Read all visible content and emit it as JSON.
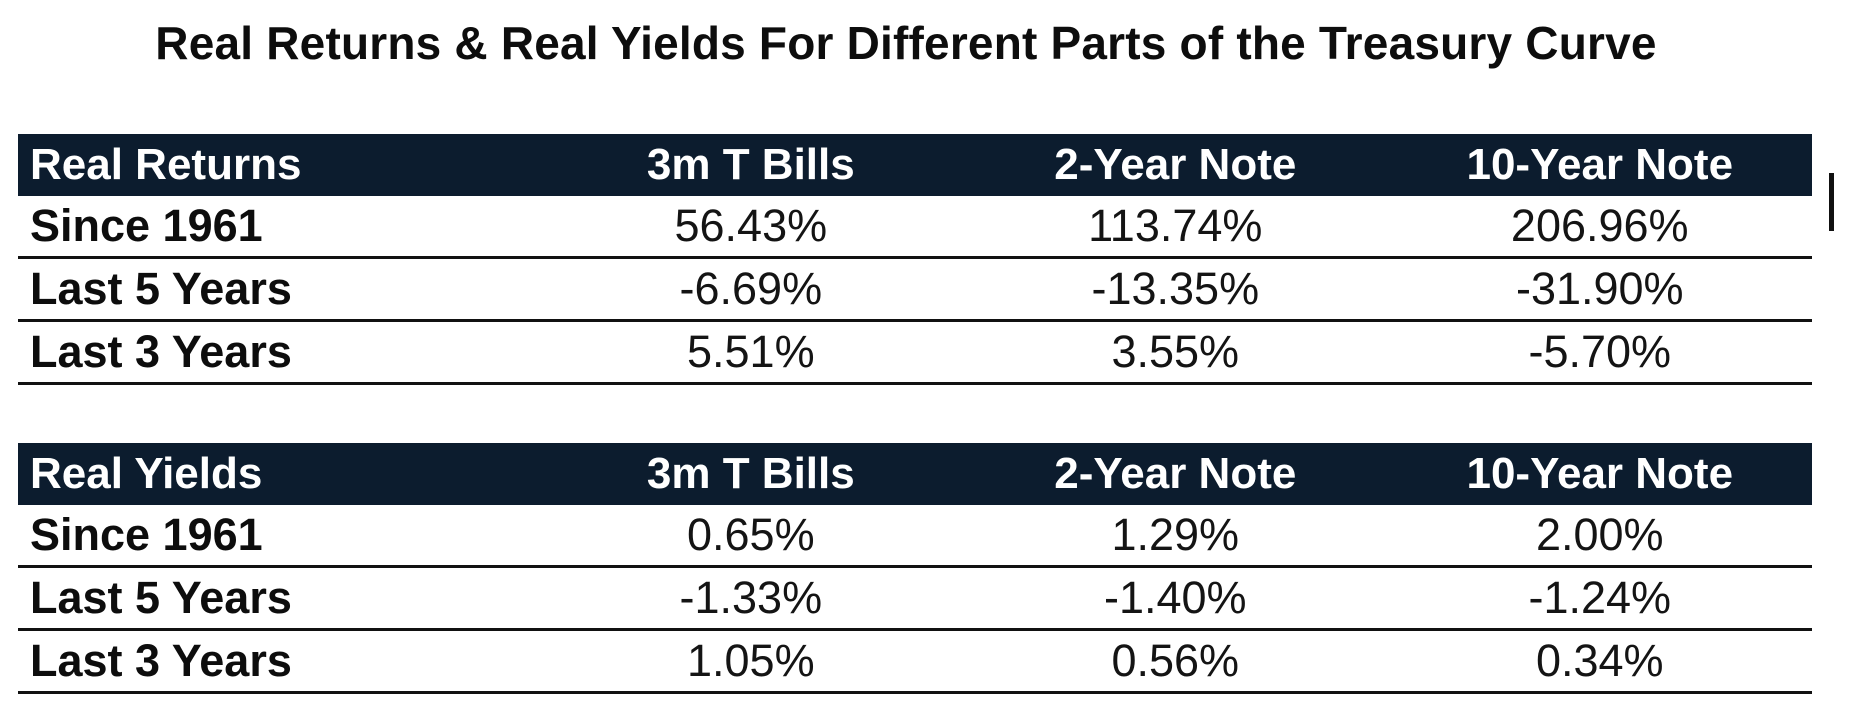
{
  "title": "Real Returns  & Real Yields For Different Parts of the Treasury Curve",
  "tables": [
    {
      "header": [
        "Real Returns",
        "3m T Bills",
        "2-Year Note",
        "10-Year Note"
      ],
      "rows": [
        {
          "label": "Since 1961",
          "values": [
            "56.43%",
            "113.74%",
            "206.96%"
          ]
        },
        {
          "label": "Last 5 Years",
          "values": [
            "-6.69%",
            "-13.35%",
            "-31.90%"
          ]
        },
        {
          "label": "Last 3 Years",
          "values": [
            "5.51%",
            "3.55%",
            "-5.70%"
          ]
        }
      ]
    },
    {
      "header": [
        "Real Yields",
        "3m T Bills",
        "2-Year Note",
        "10-Year Note"
      ],
      "rows": [
        {
          "label": "Since 1961",
          "values": [
            "0.65%",
            "1.29%",
            "2.00%"
          ]
        },
        {
          "label": "Last 5 Years",
          "values": [
            "-1.33%",
            "-1.40%",
            "-1.24%"
          ]
        },
        {
          "label": "Last 3 Years",
          "values": [
            "1.05%",
            "0.56%",
            "0.34%"
          ]
        }
      ]
    }
  ]
}
